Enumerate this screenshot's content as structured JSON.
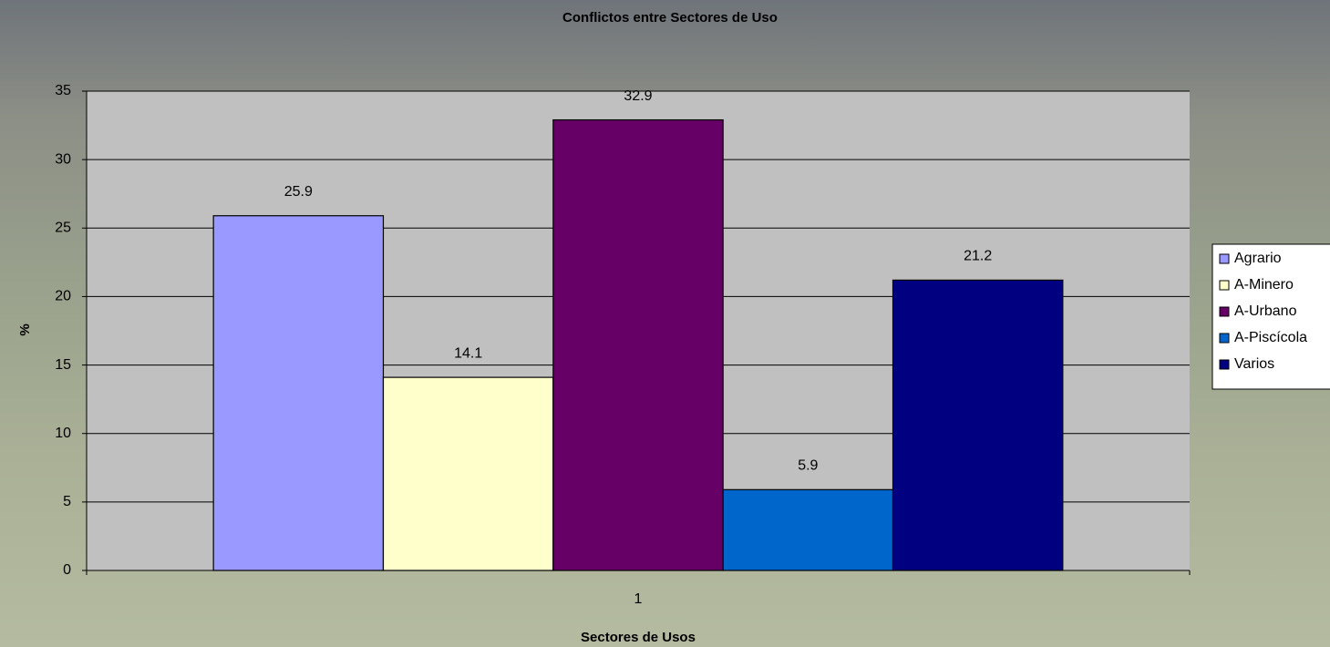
{
  "chart_data": {
    "type": "bar",
    "title": "Conflictos entre Sectores de Uso",
    "x_label": "Sectores de Usos",
    "y_label": "%",
    "categories": [
      "1"
    ],
    "series": [
      {
        "name": "Agrario",
        "color": "#9999ff",
        "values": [
          25.9
        ]
      },
      {
        "name": "A-Minero",
        "color": "#ffffcc",
        "values": [
          14.1
        ]
      },
      {
        "name": "A-Urbano",
        "color": "#660066",
        "values": [
          32.9
        ]
      },
      {
        "name": "A-Piscícola",
        "color": "#0066cc",
        "values": [
          5.9
        ]
      },
      {
        "name": "Varios",
        "color": "#000080",
        "values": [
          21.2
        ]
      }
    ],
    "ylim": [
      0,
      35
    ],
    "yticks": [
      0,
      5,
      10,
      15,
      20,
      25,
      30,
      35
    ],
    "grid": true,
    "legend": "right"
  }
}
